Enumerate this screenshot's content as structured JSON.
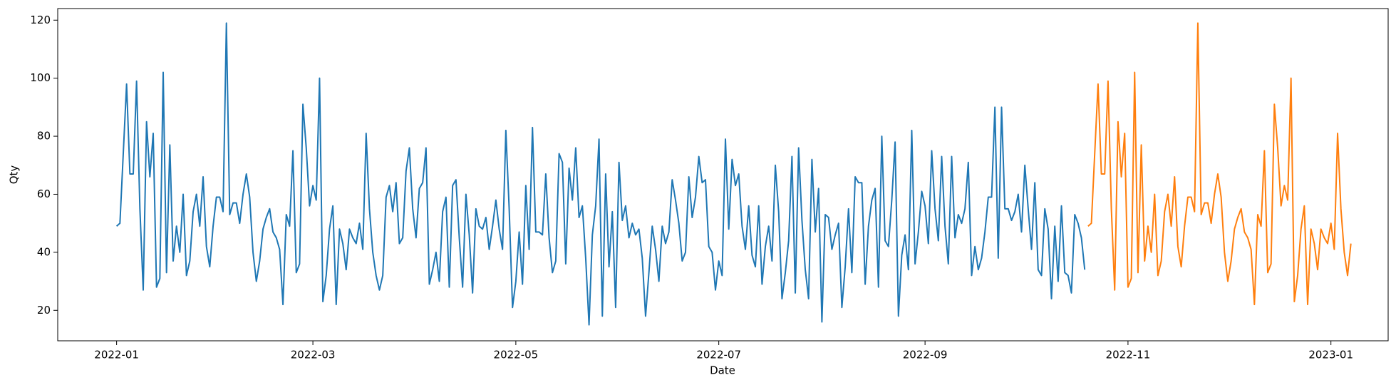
{
  "chart_data": {
    "type": "line",
    "xlabel": "Date",
    "ylabel": "Qty",
    "xlim": [
      -17.7,
      382.2
    ],
    "xticks": [
      {
        "value": 0,
        "label": "2022-01"
      },
      {
        "value": 59,
        "label": "2022-03"
      },
      {
        "value": 120,
        "label": "2022-05"
      },
      {
        "value": 181,
        "label": "2022-07"
      },
      {
        "value": 243,
        "label": "2022-09"
      },
      {
        "value": 304,
        "label": "2022-11"
      },
      {
        "value": 365,
        "label": "2023-01"
      }
    ],
    "ylim": [
      9.5,
      124
    ],
    "yticks": [
      20,
      40,
      60,
      80,
      100,
      120
    ],
    "series": [
      {
        "color": "#1f77b4",
        "x": [
          0,
          1,
          2,
          3,
          4,
          5,
          6,
          7,
          8,
          9,
          10,
          11,
          12,
          13,
          14,
          15,
          16,
          17,
          18,
          19,
          20,
          21,
          22,
          23,
          24,
          25,
          26,
          27,
          28,
          29,
          30,
          31,
          32,
          33,
          34,
          35,
          36,
          37,
          38,
          39,
          40,
          41,
          42,
          43,
          44,
          45,
          46,
          47,
          48,
          49,
          50,
          51,
          52,
          53,
          54,
          55,
          56,
          57,
          58,
          59,
          60,
          61,
          62,
          63,
          64,
          65,
          66,
          67,
          68,
          69,
          70,
          71,
          72,
          73,
          74,
          75,
          76,
          77,
          78,
          79,
          80,
          81,
          82,
          83,
          84,
          85,
          86,
          87,
          88,
          89,
          90,
          91,
          92,
          93,
          94,
          95,
          96,
          97,
          98,
          99,
          100,
          101,
          102,
          103,
          104,
          105,
          106,
          107,
          108,
          109,
          110,
          111,
          112,
          113,
          114,
          115,
          116,
          117,
          118,
          119,
          120,
          121,
          122,
          123,
          124,
          125,
          126,
          127,
          128,
          129,
          130,
          131,
          132,
          133,
          134,
          135,
          136,
          137,
          138,
          139,
          140,
          141,
          142,
          143,
          144,
          145,
          146,
          147,
          148,
          149,
          150,
          151,
          152,
          153,
          154,
          155,
          156,
          157,
          158,
          159,
          160,
          161,
          162,
          163,
          164,
          165,
          166,
          167,
          168,
          169,
          170,
          171,
          172,
          173,
          174,
          175,
          176,
          177,
          178,
          179,
          180,
          181,
          182,
          183,
          184,
          185,
          186,
          187,
          188,
          189,
          190,
          191,
          192,
          193,
          194,
          195,
          196,
          197,
          198,
          199,
          200,
          201,
          202,
          203,
          204,
          205,
          206,
          207,
          208,
          209,
          210,
          211,
          212,
          213,
          214,
          215,
          216,
          217,
          218,
          219,
          220,
          221,
          222,
          223,
          224,
          225,
          226,
          227,
          228,
          229,
          230,
          231,
          232,
          233,
          234,
          235,
          236,
          237,
          238,
          239,
          240,
          241,
          242,
          243,
          244,
          245,
          246,
          247,
          248,
          249,
          250,
          251,
          252,
          253,
          254,
          255,
          256,
          257,
          258,
          259,
          260,
          261,
          262,
          263,
          264,
          265,
          266,
          267,
          268,
          269,
          270,
          271,
          272,
          273,
          274,
          275,
          276,
          277,
          278,
          279,
          280,
          281,
          282,
          283,
          284,
          285,
          286,
          287,
          288,
          289,
          290,
          291
        ],
        "values": [
          49,
          50,
          74,
          98,
          67,
          67,
          99,
          55,
          27,
          85,
          66,
          81,
          28,
          31,
          102,
          33,
          77,
          37,
          49,
          40,
          60,
          32,
          37,
          54,
          60,
          49,
          66,
          42,
          35,
          49,
          59,
          59,
          54,
          119,
          53,
          57,
          57,
          50,
          60,
          67,
          59,
          40,
          30,
          37,
          48,
          52,
          55,
          47,
          45,
          41,
          22,
          53,
          49,
          75,
          33,
          36,
          91,
          76,
          56,
          63,
          58,
          100,
          23,
          32,
          48,
          56,
          22,
          48,
          43,
          34,
          48,
          45,
          43,
          50,
          41,
          81,
          55,
          40,
          32,
          27,
          32,
          59,
          63,
          54,
          64,
          43,
          45,
          68,
          76,
          55,
          45,
          62,
          64,
          76,
          29,
          34,
          40,
          30,
          54,
          59,
          28,
          63,
          65,
          45,
          28,
          60,
          46,
          26,
          55,
          49,
          48,
          52,
          41,
          49,
          58,
          48,
          41,
          82,
          55,
          21,
          30,
          47,
          29,
          63,
          41,
          83,
          47,
          47,
          46,
          67,
          45,
          33,
          37,
          74,
          71,
          36,
          69,
          58,
          76,
          52,
          56,
          38,
          15,
          46,
          56,
          79,
          18,
          67,
          35,
          54,
          21,
          71,
          51,
          56,
          45,
          50,
          46,
          48,
          38,
          18,
          33,
          49,
          41,
          30,
          49,
          43,
          47,
          65,
          58,
          50,
          37,
          40,
          66,
          52,
          59,
          73,
          64,
          65,
          42,
          40,
          27,
          37,
          32,
          79,
          48,
          72,
          63,
          67,
          49,
          41,
          56,
          39,
          35,
          56,
          29,
          42,
          49,
          37,
          70,
          54,
          24,
          33,
          44,
          73,
          26,
          76,
          51,
          34,
          24,
          72,
          47,
          62,
          16,
          53,
          52,
          41,
          46,
          50,
          21,
          35,
          55,
          33,
          66,
          64,
          64,
          29,
          49,
          58,
          62,
          28,
          80,
          44,
          42,
          58,
          78,
          18,
          39,
          46,
          34,
          82,
          36,
          47,
          61,
          56,
          43,
          75,
          55,
          44,
          73,
          49,
          36,
          73,
          45,
          53,
          50,
          55,
          71,
          32,
          42,
          34,
          38,
          47,
          59,
          59,
          90,
          38,
          90,
          55,
          55,
          51,
          54,
          60,
          47,
          70,
          55,
          41,
          64,
          34,
          32,
          55,
          48,
          24,
          49,
          30,
          56,
          33,
          32,
          26,
          53,
          50,
          45,
          34
        ]
      },
      {
        "color": "#ff7f0e",
        "x": [
          292,
          293,
          294,
          295,
          296,
          297,
          298,
          299,
          300,
          301,
          302,
          303,
          304,
          305,
          306,
          307,
          308,
          309,
          310,
          311,
          312,
          313,
          314,
          315,
          316,
          317,
          318,
          319,
          320,
          321,
          322,
          323,
          324,
          325,
          326,
          327,
          328,
          329,
          330,
          331,
          332,
          333,
          334,
          335,
          336,
          337,
          338,
          339,
          340,
          341,
          342,
          343,
          344,
          345,
          346,
          347,
          348,
          349,
          350,
          351,
          352,
          353,
          354,
          355,
          356,
          357,
          358,
          359,
          360,
          361,
          362,
          363,
          364,
          365,
          366,
          367,
          368,
          369,
          370,
          371
        ],
        "values": [
          49,
          50,
          74,
          98,
          67,
          67,
          99,
          55,
          27,
          85,
          66,
          81,
          28,
          31,
          102,
          33,
          77,
          37,
          49,
          40,
          60,
          32,
          37,
          54,
          60,
          49,
          66,
          42,
          35,
          49,
          59,
          59,
          54,
          119,
          53,
          57,
          57,
          50,
          60,
          67,
          59,
          40,
          30,
          37,
          48,
          52,
          55,
          47,
          45,
          41,
          22,
          53,
          49,
          75,
          33,
          36,
          91,
          76,
          56,
          63,
          58,
          100,
          23,
          32,
          48,
          56,
          22,
          48,
          43,
          34,
          48,
          45,
          43,
          50,
          41,
          81,
          55,
          40,
          32,
          43
        ]
      }
    ]
  }
}
